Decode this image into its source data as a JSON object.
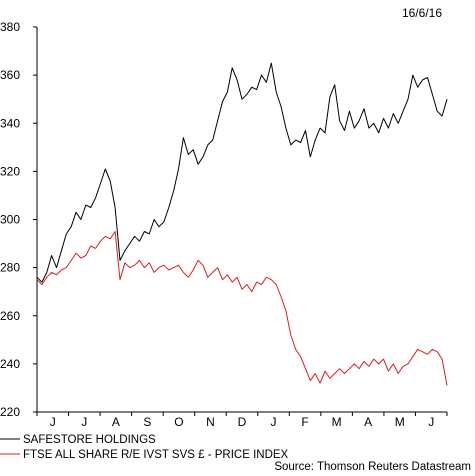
{
  "chart_data": {
    "type": "line",
    "date_label": "16/6/16",
    "source": "Source: Thomson Reuters Datastream",
    "ylim": [
      220,
      380
    ],
    "yticks": [
      220,
      240,
      260,
      280,
      300,
      320,
      340,
      360,
      380
    ],
    "xtick_labels": [
      "J",
      "J",
      "A",
      "S",
      "O",
      "N",
      "D",
      "J",
      "F",
      "M",
      "A",
      "M",
      "J"
    ],
    "grid": false,
    "series": [
      {
        "name": "SAFESTORE HOLDINGS",
        "color": "#000000",
        "points": [
          [
            0,
            276
          ],
          [
            1,
            274
          ],
          [
            2,
            278
          ],
          [
            3,
            285
          ],
          [
            4,
            280
          ],
          [
            5,
            287
          ],
          [
            6,
            294
          ],
          [
            7,
            297
          ],
          [
            8,
            303
          ],
          [
            9,
            300
          ],
          [
            10,
            306
          ],
          [
            11,
            305
          ],
          [
            12,
            309
          ],
          [
            13,
            315
          ],
          [
            14,
            321
          ],
          [
            15,
            316
          ],
          [
            16,
            305
          ],
          [
            17,
            283
          ],
          [
            18,
            287
          ],
          [
            19,
            290
          ],
          [
            20,
            293
          ],
          [
            21,
            291
          ],
          [
            22,
            295
          ],
          [
            23,
            294
          ],
          [
            24,
            300
          ],
          [
            25,
            297
          ],
          [
            26,
            299
          ],
          [
            27,
            305
          ],
          [
            28,
            312
          ],
          [
            29,
            321
          ],
          [
            30,
            334
          ],
          [
            31,
            327
          ],
          [
            32,
            329
          ],
          [
            33,
            323
          ],
          [
            34,
            326
          ],
          [
            35,
            331
          ],
          [
            36,
            333
          ],
          [
            37,
            341
          ],
          [
            38,
            349
          ],
          [
            39,
            353
          ],
          [
            40,
            363
          ],
          [
            41,
            358
          ],
          [
            42,
            350
          ],
          [
            43,
            352
          ],
          [
            44,
            355
          ],
          [
            45,
            354
          ],
          [
            46,
            360
          ],
          [
            47,
            357
          ],
          [
            48,
            365
          ],
          [
            49,
            353
          ],
          [
            50,
            347
          ],
          [
            51,
            338
          ],
          [
            52,
            331
          ],
          [
            53,
            333
          ],
          [
            54,
            332
          ],
          [
            55,
            337
          ],
          [
            56,
            326
          ],
          [
            57,
            333
          ],
          [
            58,
            338
          ],
          [
            59,
            336
          ],
          [
            60,
            351
          ],
          [
            61,
            356
          ],
          [
            62,
            341
          ],
          [
            63,
            337
          ],
          [
            64,
            345
          ],
          [
            65,
            338
          ],
          [
            66,
            341
          ],
          [
            67,
            346
          ],
          [
            68,
            338
          ],
          [
            69,
            340
          ],
          [
            70,
            336
          ],
          [
            71,
            342
          ],
          [
            72,
            338
          ],
          [
            73,
            344
          ],
          [
            74,
            340
          ],
          [
            75,
            345
          ],
          [
            76,
            350
          ],
          [
            77,
            360
          ],
          [
            78,
            355
          ],
          [
            79,
            358
          ],
          [
            80,
            359
          ],
          [
            81,
            352
          ],
          [
            82,
            345
          ],
          [
            83,
            343
          ],
          [
            84,
            350
          ]
        ]
      },
      {
        "name": "FTSE ALL SHARE R/E IVST SVS £ - PRICE INDEX",
        "color": "#d42020",
        "points": [
          [
            0,
            275
          ],
          [
            1,
            273
          ],
          [
            2,
            276
          ],
          [
            3,
            278
          ],
          [
            4,
            277
          ],
          [
            5,
            279
          ],
          [
            6,
            280
          ],
          [
            7,
            283
          ],
          [
            8,
            286
          ],
          [
            9,
            284
          ],
          [
            10,
            285
          ],
          [
            11,
            289
          ],
          [
            12,
            288
          ],
          [
            13,
            291
          ],
          [
            14,
            293
          ],
          [
            15,
            292
          ],
          [
            16,
            295
          ],
          [
            17,
            275
          ],
          [
            18,
            282
          ],
          [
            19,
            280
          ],
          [
            20,
            281
          ],
          [
            21,
            283
          ],
          [
            22,
            280
          ],
          [
            23,
            282
          ],
          [
            24,
            278
          ],
          [
            25,
            280
          ],
          [
            26,
            281
          ],
          [
            27,
            279
          ],
          [
            28,
            280
          ],
          [
            29,
            281
          ],
          [
            30,
            278
          ],
          [
            31,
            276
          ],
          [
            32,
            279
          ],
          [
            33,
            283
          ],
          [
            34,
            281
          ],
          [
            35,
            276
          ],
          [
            36,
            278
          ],
          [
            37,
            280
          ],
          [
            38,
            275
          ],
          [
            39,
            277
          ],
          [
            40,
            274
          ],
          [
            41,
            276
          ],
          [
            42,
            271
          ],
          [
            43,
            273
          ],
          [
            44,
            270
          ],
          [
            45,
            274
          ],
          [
            46,
            273
          ],
          [
            47,
            276
          ],
          [
            48,
            275
          ],
          [
            49,
            273
          ],
          [
            50,
            268
          ],
          [
            51,
            262
          ],
          [
            52,
            252
          ],
          [
            53,
            246
          ],
          [
            54,
            243
          ],
          [
            55,
            238
          ],
          [
            56,
            233
          ],
          [
            57,
            236
          ],
          [
            58,
            232
          ],
          [
            59,
            237
          ],
          [
            60,
            234
          ],
          [
            61,
            236
          ],
          [
            62,
            238
          ],
          [
            63,
            236
          ],
          [
            64,
            238
          ],
          [
            65,
            240
          ],
          [
            66,
            238
          ],
          [
            67,
            241
          ],
          [
            68,
            239
          ],
          [
            69,
            242
          ],
          [
            70,
            240
          ],
          [
            71,
            242
          ],
          [
            72,
            237
          ],
          [
            73,
            240
          ],
          [
            74,
            236
          ],
          [
            75,
            239
          ],
          [
            76,
            240
          ],
          [
            77,
            243
          ],
          [
            78,
            246
          ],
          [
            79,
            245
          ],
          [
            80,
            244
          ],
          [
            81,
            246
          ],
          [
            82,
            245
          ],
          [
            83,
            242
          ],
          [
            84,
            231
          ]
        ]
      }
    ]
  }
}
